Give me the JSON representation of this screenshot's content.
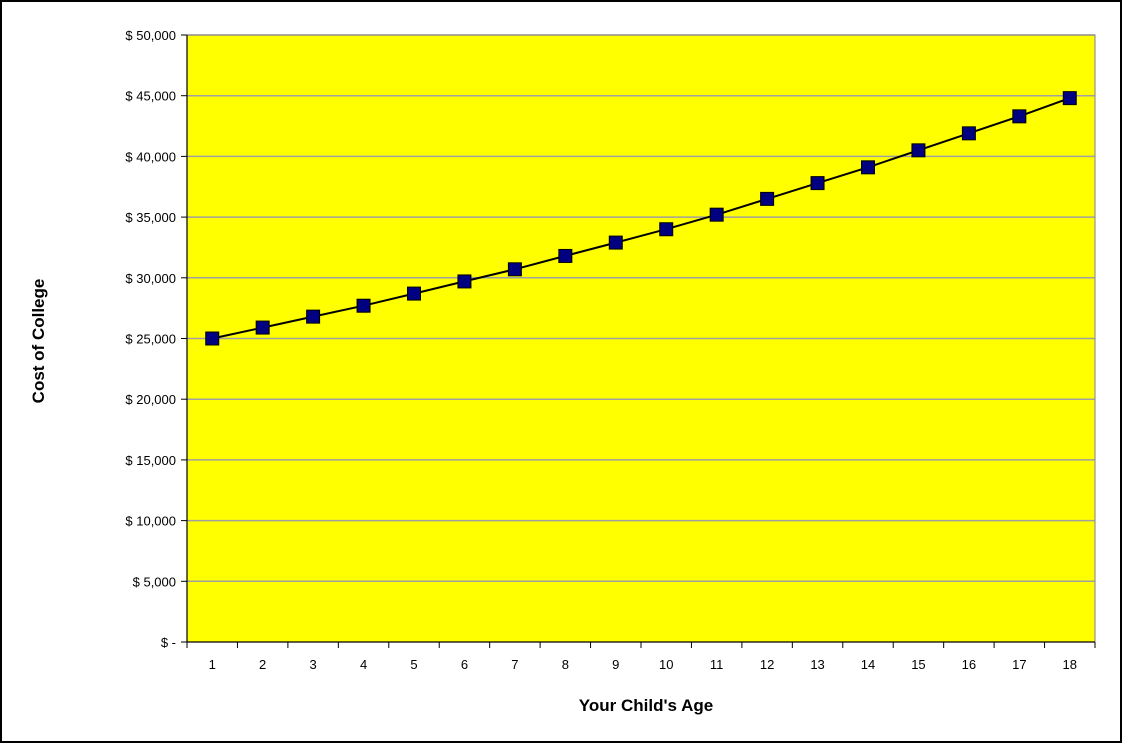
{
  "chart_data": {
    "type": "line",
    "title": "",
    "xlabel": "Your Child's Age",
    "ylabel": "Cost of College",
    "categories": [
      "1",
      "2",
      "3",
      "4",
      "5",
      "6",
      "7",
      "8",
      "9",
      "10",
      "11",
      "12",
      "13",
      "14",
      "15",
      "16",
      "17",
      "18"
    ],
    "series": [
      {
        "values": [
          25000,
          25900,
          26800,
          27700,
          28700,
          29700,
          30700,
          31800,
          32900,
          34000,
          35200,
          36500,
          37800,
          39100,
          40500,
          41900,
          43300,
          44800
        ]
      }
    ],
    "ylim": [
      0,
      50000
    ],
    "ytick_step": 5000,
    "ytick_labels": [
      "$ -",
      "$ 5,000",
      "$ 10,000",
      "$ 15,000",
      "$ 20,000",
      "$ 25,000",
      "$ 30,000",
      "$ 35,000",
      "$ 40,000",
      "$ 45,000",
      "$ 50,000"
    ],
    "grid": true,
    "legend": "none",
    "colors": {
      "plot_background": "#FFFF00",
      "gridline": "#A0A0A0",
      "line": "#000000",
      "marker": "#000080"
    },
    "marker_shape": "square"
  }
}
